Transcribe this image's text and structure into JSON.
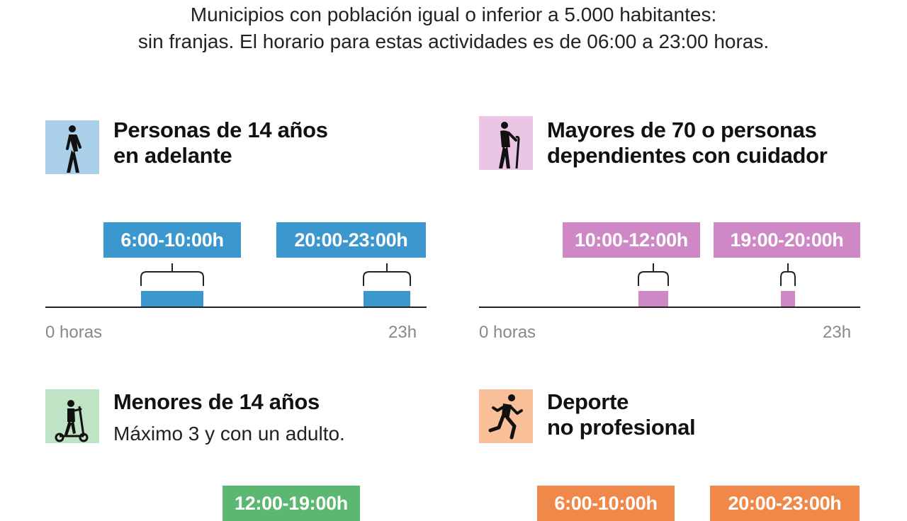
{
  "intro": {
    "line1": "Municipios con población igual o inferior a 5.000 habitantes:",
    "line2": "sin franjas. El horario para estas actividades es de 06:00 a 23:00 horas."
  },
  "panels": [
    {
      "id": "adults",
      "icon": "walking-person-icon",
      "color": "#3d97cf",
      "bg": "#a9cfe9",
      "title_line1": "Personas de 14 años",
      "title_line2": "en adelante",
      "subtitle": "",
      "axis_start_label": "0 horas",
      "axis_end_label": "23h",
      "slots": [
        {
          "label": "6:00-10:00h",
          "start": 6,
          "end": 10
        },
        {
          "label": "20:00-23:00h",
          "start": 20,
          "end": 23
        }
      ]
    },
    {
      "id": "elderly",
      "icon": "elderly-person-cane-icon",
      "color": "#cf88c6",
      "bg": "#ebc6e4",
      "title_line1": "Mayores de 70 o personas",
      "title_line2": "dependientes con cuidador",
      "subtitle": "",
      "axis_start_label": "0 horas",
      "axis_end_label": "23h",
      "slots": [
        {
          "label": "10:00-12:00h",
          "start": 10,
          "end": 12
        },
        {
          "label": "19:00-20:00h",
          "start": 19,
          "end": 20
        }
      ]
    },
    {
      "id": "children",
      "icon": "child-scooter-icon",
      "color": "#5cb870",
      "bg": "#bfe3c4",
      "title_line1": "Menores de 14 años",
      "title_line2": "",
      "subtitle": "Máximo 3 y con un adulto.",
      "axis_start_label": "",
      "axis_end_label": "",
      "slots": [
        {
          "label": "12:00-19:00h",
          "start": 12,
          "end": 19
        }
      ]
    },
    {
      "id": "sport",
      "icon": "running-person-icon",
      "color": "#f0884a",
      "bg": "#f8bf98",
      "title_line1": "Deporte",
      "title_line2": "no profesional",
      "subtitle": "",
      "axis_start_label": "",
      "axis_end_label": "",
      "slots": [
        {
          "label": "6:00-10:00h",
          "start": 6,
          "end": 10
        },
        {
          "label": "20:00-23:00h",
          "start": 20,
          "end": 23
        }
      ]
    }
  ]
}
